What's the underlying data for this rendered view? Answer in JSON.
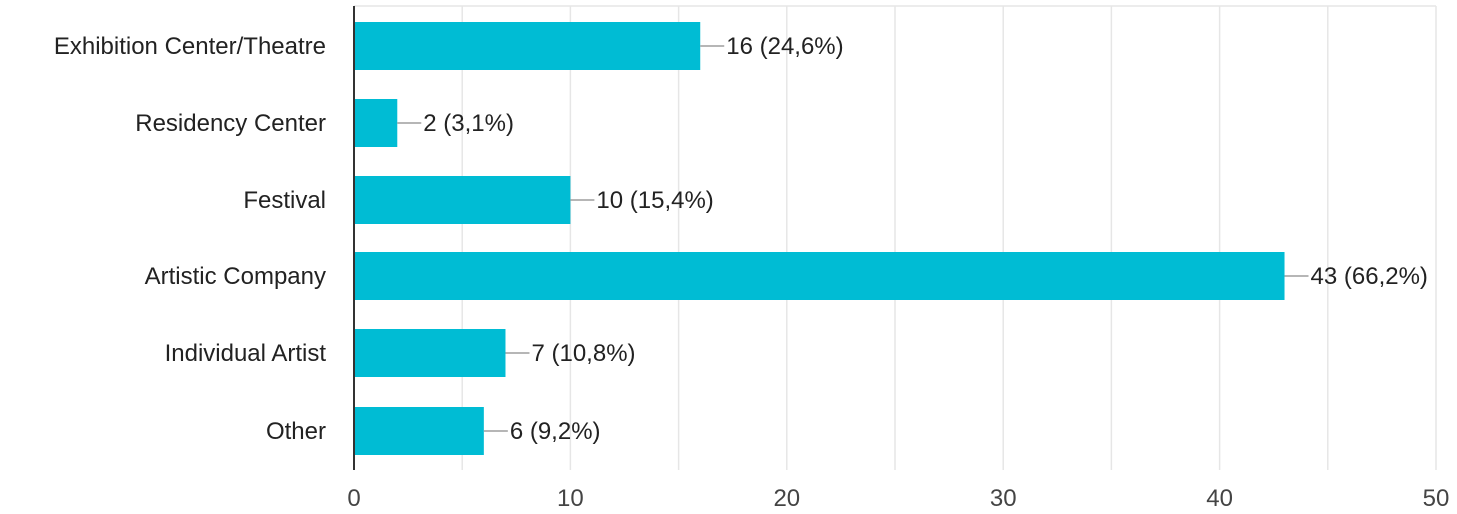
{
  "chart_data": {
    "type": "bar",
    "orientation": "horizontal",
    "categories": [
      "Exhibition Center/Theatre",
      "Residency Center",
      "Festival",
      "Artistic Company",
      "Individual Artist",
      "Other"
    ],
    "values": [
      16,
      2,
      10,
      43,
      7,
      6
    ],
    "data_labels": [
      "16 (24,6%)",
      "2 (3,1%)",
      "10 (15,4%)",
      "43 (66,2%)",
      "7 (10,8%)",
      "6 (9,2%)"
    ],
    "xlim": [
      0,
      50
    ],
    "xticks": [
      0,
      10,
      20,
      30,
      40,
      50
    ],
    "xtick_labels": [
      "0",
      "10",
      "20",
      "30",
      "40",
      "50"
    ],
    "grid": true,
    "bar_color": "#00BCD4",
    "grid_color": "#E6E6E6",
    "axis_color": "#333333",
    "leader_color": "#9E9E9E"
  }
}
